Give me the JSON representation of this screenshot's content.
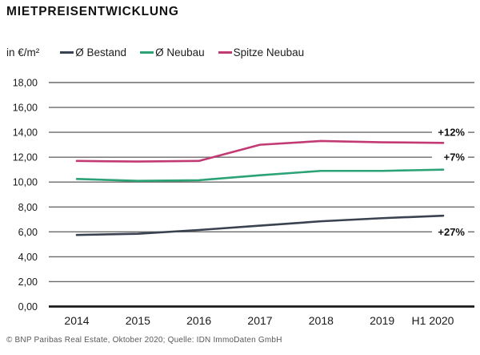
{
  "title": "MIETPREISENTWICKLUNG",
  "unit_label": "in €/m²",
  "legend": [
    {
      "label": "Ø Bestand",
      "color": "#3a4150"
    },
    {
      "label": "Ø Neubau",
      "color": "#2ca277"
    },
    {
      "label": "Spitze Neubau",
      "color": "#c23a74"
    }
  ],
  "footer": "© BNP Paribas Real Estate, Oktober 2020; Quelle: IDN ImmoDaten GmbH",
  "chart_data": {
    "type": "line",
    "title": "MIETPREISENTWICKLUNG",
    "ylabel": "in €/m²",
    "categories": [
      "2014",
      "2015",
      "2016",
      "2017",
      "2018",
      "2019",
      "H1 2020"
    ],
    "series": [
      {
        "name": "Ø Bestand",
        "color": "#3a4150",
        "values": [
          5.75,
          5.85,
          6.15,
          6.5,
          6.85,
          7.1,
          7.3
        ]
      },
      {
        "name": "Ø Neubau",
        "color": "#2ca277",
        "values": [
          10.25,
          10.1,
          10.15,
          10.55,
          10.9,
          10.9,
          11.0
        ]
      },
      {
        "name": "Spitze Neubau",
        "color": "#c23a74",
        "values": [
          11.7,
          11.65,
          11.7,
          13.0,
          13.3,
          13.2,
          13.15
        ]
      }
    ],
    "ylim": [
      0,
      18
    ],
    "y_tick_step": 2,
    "y_tick_labels": [
      "0,00",
      "2,00",
      "4,00",
      "6,00",
      "8,00",
      "10,00",
      "12,00",
      "14,00",
      "16,00",
      "18,00"
    ],
    "grid": true,
    "legend_position": "top",
    "annotations": [
      {
        "label": "+12%",
        "series": "Spitze Neubau",
        "at_value": 14
      },
      {
        "label": "+7%",
        "series": "Ø Neubau",
        "at_value": 12
      },
      {
        "label": "+27%",
        "series": "Ø Bestand",
        "at_value": 6
      }
    ],
    "colors": {
      "gridline": "#6b6b6b",
      "axis": "#1a1a1a",
      "text": "#1a1a1a"
    }
  }
}
